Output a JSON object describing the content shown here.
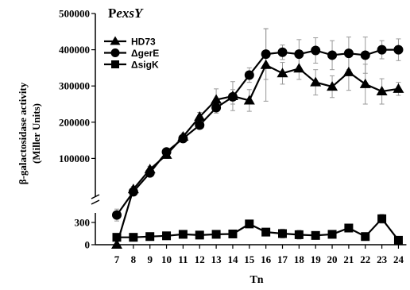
{
  "chart_data": {
    "type": "line",
    "title_prefix": "P",
    "title_italic": "exsY",
    "xlabel": "Tn",
    "ylabel_line1": "β-galactosidase activity",
    "ylabel_line2": "(Miller Units)",
    "x": [
      7,
      8,
      9,
      10,
      11,
      12,
      13,
      14,
      15,
      16,
      17,
      18,
      19,
      20,
      21,
      22,
      23,
      24
    ],
    "yticks_upper": [
      {
        "value": 100000,
        "label": "100000"
      },
      {
        "value": 200000,
        "label": "200000"
      },
      {
        "value": 300000,
        "label": "300000"
      },
      {
        "value": 400000,
        "label": "400000"
      },
      {
        "value": 500000,
        "label": "500000"
      }
    ],
    "yticks_lower": [
      {
        "value": 0,
        "label": "0"
      },
      {
        "value": 300,
        "label": "300"
      }
    ],
    "broken_axis": true,
    "grid": false,
    "legend_position": "top-left",
    "series": [
      {
        "name": "HD73",
        "marker": "triangle",
        "values": [
          0,
          15000,
          70000,
          110000,
          160000,
          215000,
          262000,
          272000,
          260000,
          358000,
          335000,
          348000,
          310000,
          298000,
          338000,
          305000,
          285000,
          292000
        ],
        "errors": [
          0,
          8000,
          8000,
          10000,
          10000,
          12000,
          30000,
          40000,
          30000,
          100000,
          30000,
          30000,
          35000,
          30000,
          50000,
          55000,
          35000,
          18000
        ]
      },
      {
        "name": "ΔgerE",
        "marker": "circle",
        "values": [
          400,
          8000,
          60000,
          118000,
          155000,
          192000,
          240000,
          270000,
          330000,
          388000,
          393000,
          388000,
          398000,
          385000,
          390000,
          385000,
          400000,
          400000
        ],
        "errors": [
          80,
          5000,
          8000,
          8000,
          10000,
          10000,
          15000,
          20000,
          20000,
          70000,
          20000,
          40000,
          35000,
          40000,
          45000,
          50000,
          25000,
          30000
        ],
        "lower_values": [
          400,
          null,
          null,
          null,
          null,
          null,
          null,
          null,
          null,
          null,
          null,
          null,
          null,
          null,
          null,
          null,
          null,
          null
        ]
      },
      {
        "name": "ΔsigK",
        "marker": "square",
        "values": [
          100,
          100,
          110,
          120,
          140,
          130,
          140,
          145,
          280,
          170,
          150,
          135,
          125,
          140,
          225,
          110,
          350,
          60
        ],
        "errors": [
          10,
          10,
          15,
          15,
          20,
          15,
          20,
          20,
          40,
          50,
          60,
          60,
          30,
          25,
          30,
          20,
          60,
          15
        ]
      }
    ]
  }
}
